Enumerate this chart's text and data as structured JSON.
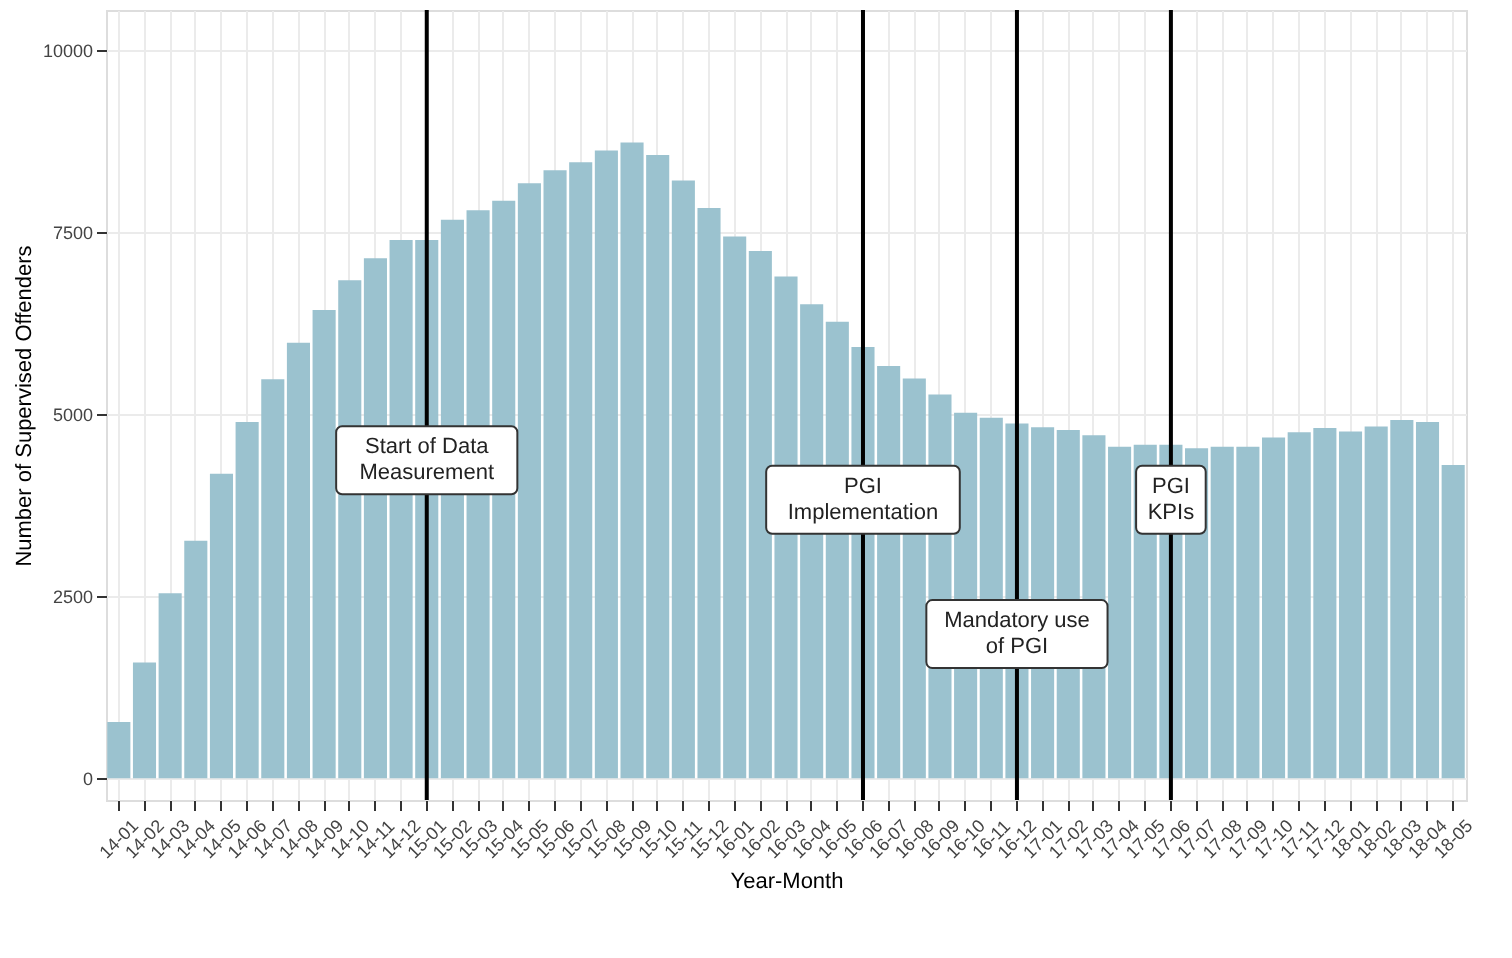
{
  "chart_data": {
    "type": "bar",
    "xlabel": "Year-Month",
    "ylabel": "Number of Supervised Offenders",
    "categories": [
      "14-01",
      "14-02",
      "14-03",
      "14-04",
      "14-05",
      "14-06",
      "14-07",
      "14-08",
      "14-09",
      "14-10",
      "14-11",
      "14-12",
      "15-01",
      "15-02",
      "15-03",
      "15-04",
      "15-05",
      "15-06",
      "15-07",
      "15-08",
      "15-09",
      "15-10",
      "15-11",
      "15-12",
      "16-01",
      "16-02",
      "16-03",
      "16-04",
      "16-05",
      "16-06",
      "16-07",
      "16-08",
      "16-09",
      "16-10",
      "16-11",
      "16-12",
      "17-01",
      "17-02",
      "17-03",
      "17-04",
      "17-05",
      "17-06",
      "17-07",
      "17-08",
      "17-09",
      "17-10",
      "17-11",
      "17-12",
      "18-01",
      "18-02",
      "18-03",
      "18-04",
      "18-05"
    ],
    "values": [
      770,
      1590,
      2540,
      3260,
      4180,
      4890,
      5480,
      5980,
      6430,
      6840,
      7140,
      7390,
      7390,
      7670,
      7800,
      7930,
      8170,
      8350,
      8460,
      8620,
      8730,
      8560,
      8210,
      7830,
      7440,
      7240,
      6890,
      6510,
      6270,
      5920,
      5660,
      5490,
      5270,
      5020,
      4950,
      4870,
      4820,
      4780,
      4710,
      4550,
      4580,
      4580,
      4530,
      4550,
      4550,
      4680,
      4750,
      4810,
      4760,
      4830,
      4920,
      4890,
      4300
    ],
    "color": "#9bc2cf",
    "ylim": [
      -300,
      10550
    ],
    "yticks": [
      0,
      2500,
      5000,
      7500,
      10000
    ],
    "grid": true,
    "ref_lines": [
      {
        "axis": "x",
        "value": "15-01",
        "color": "#000000",
        "label": "Start of Data\nMeasurement"
      },
      {
        "axis": "x",
        "value": "16-06",
        "color": "#000000",
        "label": "PGI\nImplementation"
      },
      {
        "axis": "x",
        "value": "16-12",
        "color": "#000000",
        "label": "Mandatory use\nof PGI"
      },
      {
        "axis": "x",
        "value": "17-06",
        "color": "#000000",
        "label": "PGI\nKPIs"
      }
    ]
  }
}
